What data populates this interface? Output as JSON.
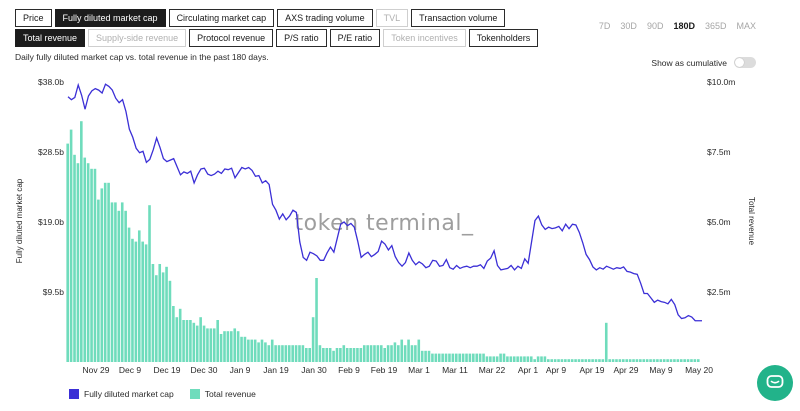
{
  "metric_tabs_row1": [
    {
      "label": "Price",
      "state": "normal"
    },
    {
      "label": "Fully diluted market cap",
      "state": "active"
    },
    {
      "label": "Circulating market cap",
      "state": "normal"
    },
    {
      "label": "AXS trading volume",
      "state": "normal"
    },
    {
      "label": "TVL",
      "state": "disabled"
    },
    {
      "label": "Transaction volume",
      "state": "normal"
    }
  ],
  "metric_tabs_row2": [
    {
      "label": "Total revenue",
      "state": "active"
    },
    {
      "label": "Supply-side revenue",
      "state": "disabled"
    },
    {
      "label": "Protocol revenue",
      "state": "normal"
    },
    {
      "label": "P/S ratio",
      "state": "normal"
    },
    {
      "label": "P/E ratio",
      "state": "normal"
    },
    {
      "label": "Token incentives",
      "state": "disabled"
    },
    {
      "label": "Tokenholders",
      "state": "normal"
    }
  ],
  "time_ranges": [
    {
      "label": "7D",
      "active": false
    },
    {
      "label": "30D",
      "active": false
    },
    {
      "label": "90D",
      "active": false
    },
    {
      "label": "180D",
      "active": true
    },
    {
      "label": "365D",
      "active": false
    },
    {
      "label": "MAX",
      "active": false
    }
  ],
  "chart_header": {
    "subtitle": "Daily fully diluted market cap vs. total revenue in the past 180 days.",
    "cumulative_label": "Show as cumulative",
    "cumulative_on": false
  },
  "watermark": "token terminal_",
  "legend": [
    {
      "label": "Fully diluted market cap",
      "color": "#3b2fd6"
    },
    {
      "label": "Total revenue",
      "color": "#6fdcbc"
    }
  ],
  "colors": {
    "market_cap": "#3b2fd6",
    "revenue": "#6fdcbc",
    "accent": "#22b38a"
  },
  "icons": {
    "chat": "chat-bubble-icon"
  },
  "chart_data": {
    "type": "bar+line",
    "x_ticks": [
      "Nov 29",
      "Dec 9",
      "Dec 19",
      "Dec 30",
      "Jan 9",
      "Jan 19",
      "Jan 30",
      "Feb 9",
      "Feb 19",
      "Mar 1",
      "Mar 11",
      "Mar 22",
      "Apr 1",
      "Apr 9",
      "Apr 19",
      "Apr 29",
      "May 9",
      "May 20"
    ],
    "y_left": {
      "label": "Fully diluted market cap",
      "ticks": [
        "$0",
        "$9.5b",
        "$19.0b",
        "$28.5b",
        "$38.0b"
      ],
      "range": [
        0,
        38.0
      ],
      "unit": "billion USD"
    },
    "y_right": {
      "label": "Total revenue",
      "ticks": [
        "$0",
        "$2.5m",
        "$5.0m",
        "$7.5m",
        "$10.0m"
      ],
      "range": [
        0,
        10.0
      ],
      "unit": "million USD"
    },
    "series": [
      {
        "name": "Fully diluted market cap",
        "axis": "left",
        "kind": "line",
        "values": [
          36.0,
          35.6,
          35.9,
          37.6,
          36.2,
          34.3,
          36.1,
          36.8,
          37.1,
          36.9,
          36.5,
          37.7,
          37.4,
          36.9,
          35.8,
          35.2,
          35.6,
          34.0,
          31.6,
          30.5,
          29.0,
          28.4,
          28.6,
          27.1,
          27.5,
          28.8,
          30.4,
          29.1,
          27.6,
          27.2,
          27.4,
          27.6,
          26.5,
          25.4,
          25.8,
          25.6,
          25.9,
          24.3,
          25.4,
          26.2,
          26.3,
          25.5,
          25.3,
          25.5,
          25.9,
          25.6,
          26.2,
          26.1,
          26.3,
          25.0,
          25.7,
          26.4,
          26.2,
          26.4,
          26.0,
          25.2,
          25.3,
          24.3,
          24.6,
          24.1,
          21.4,
          20.6,
          19.4,
          20.1,
          19.3,
          19.8,
          20.6,
          20.3,
          16.3,
          14.2,
          13.8,
          14.9,
          14.7,
          14.4,
          13.8,
          13.8,
          14.8,
          15.6,
          14.9,
          16.8,
          18.7,
          19.0,
          18.5,
          18.8,
          18.3,
          16.4,
          14.2,
          14.6,
          14.9,
          14.3,
          14.6,
          15.0,
          16.4,
          16.0,
          15.2,
          15.8,
          14.3,
          13.5,
          13.0,
          13.5,
          14.8,
          13.8,
          13.2,
          13.6,
          13.3,
          12.8,
          13.0,
          13.8,
          13.7,
          13.0,
          13.1,
          13.9,
          12.8,
          12.6,
          13.1,
          12.7,
          12.9,
          13.0,
          12.8,
          13.0,
          13.0,
          13.2,
          12.7,
          13.7,
          14.1,
          15.1,
          13.1,
          12.5,
          12.6,
          12.7,
          13.1,
          12.5,
          13.0,
          12.7,
          14.0,
          13.4,
          16.3,
          19.2,
          19.8,
          18.6,
          18.0,
          18.3,
          18.1,
          18.2,
          18.4,
          17.8,
          18.7,
          18.1,
          18.7,
          18.6,
          17.6,
          16.2,
          14.6,
          13.9,
          12.9,
          12.5,
          12.8,
          12.6,
          13.0,
          12.8,
          12.6,
          12.8,
          12.7,
          12.9,
          12.3,
          12.2,
          12.0,
          11.9,
          10.7,
          9.3,
          9.3,
          8.7,
          8.1,
          8.4,
          8.2,
          8.1,
          7.9,
          8.5,
          7.8,
          6.4,
          5.9,
          6.0,
          6.3,
          6.1,
          5.6,
          5.6,
          5.6
        ]
      },
      {
        "name": "Total revenue",
        "axis": "right",
        "kind": "bar",
        "values": [
          7.8,
          8.3,
          7.4,
          7.1,
          8.6,
          7.3,
          7.1,
          6.9,
          6.9,
          5.8,
          6.2,
          6.4,
          6.4,
          5.7,
          5.7,
          5.4,
          5.7,
          5.4,
          4.8,
          4.4,
          4.3,
          4.7,
          4.3,
          4.2,
          5.6,
          3.5,
          3.1,
          3.5,
          3.2,
          3.4,
          2.9,
          2.0,
          1.6,
          1.9,
          1.5,
          1.5,
          1.5,
          1.4,
          1.3,
          1.6,
          1.3,
          1.2,
          1.2,
          1.2,
          1.5,
          1.0,
          1.1,
          1.1,
          1.1,
          1.2,
          1.1,
          0.9,
          0.9,
          0.8,
          0.8,
          0.8,
          0.7,
          0.8,
          0.7,
          0.6,
          0.8,
          0.6,
          0.6,
          0.6,
          0.6,
          0.6,
          0.6,
          0.6,
          0.6,
          0.6,
          0.5,
          0.5,
          1.6,
          3.0,
          0.6,
          0.5,
          0.5,
          0.5,
          0.4,
          0.5,
          0.5,
          0.6,
          0.5,
          0.5,
          0.5,
          0.5,
          0.5,
          0.6,
          0.6,
          0.6,
          0.6,
          0.6,
          0.6,
          0.5,
          0.6,
          0.6,
          0.7,
          0.6,
          0.8,
          0.6,
          0.8,
          0.6,
          0.6,
          0.8,
          0.4,
          0.4,
          0.4,
          0.3,
          0.3,
          0.3,
          0.3,
          0.3,
          0.3,
          0.3,
          0.3,
          0.3,
          0.3,
          0.3,
          0.3,
          0.3,
          0.3,
          0.3,
          0.3,
          0.2,
          0.2,
          0.2,
          0.2,
          0.3,
          0.3,
          0.2,
          0.2,
          0.2,
          0.2,
          0.2,
          0.2,
          0.2,
          0.2,
          0.1,
          0.2,
          0.2,
          0.2,
          0.1,
          0.1,
          0.1,
          0.1,
          0.1,
          0.1,
          0.1,
          0.1,
          0.1,
          0.1,
          0.1,
          0.1,
          0.1,
          0.1,
          0.1,
          0.1,
          0.1,
          1.4,
          0.1,
          0.1,
          0.1,
          0.1,
          0.1,
          0.1,
          0.1,
          0.1,
          0.1,
          0.1,
          0.1,
          0.1,
          0.1,
          0.1,
          0.1,
          0.1,
          0.1,
          0.1,
          0.1,
          0.1,
          0.1,
          0.1,
          0.1,
          0.1,
          0.1,
          0.1,
          0.1
        ]
      }
    ],
    "grid": false,
    "legend_position": "bottom-left"
  }
}
